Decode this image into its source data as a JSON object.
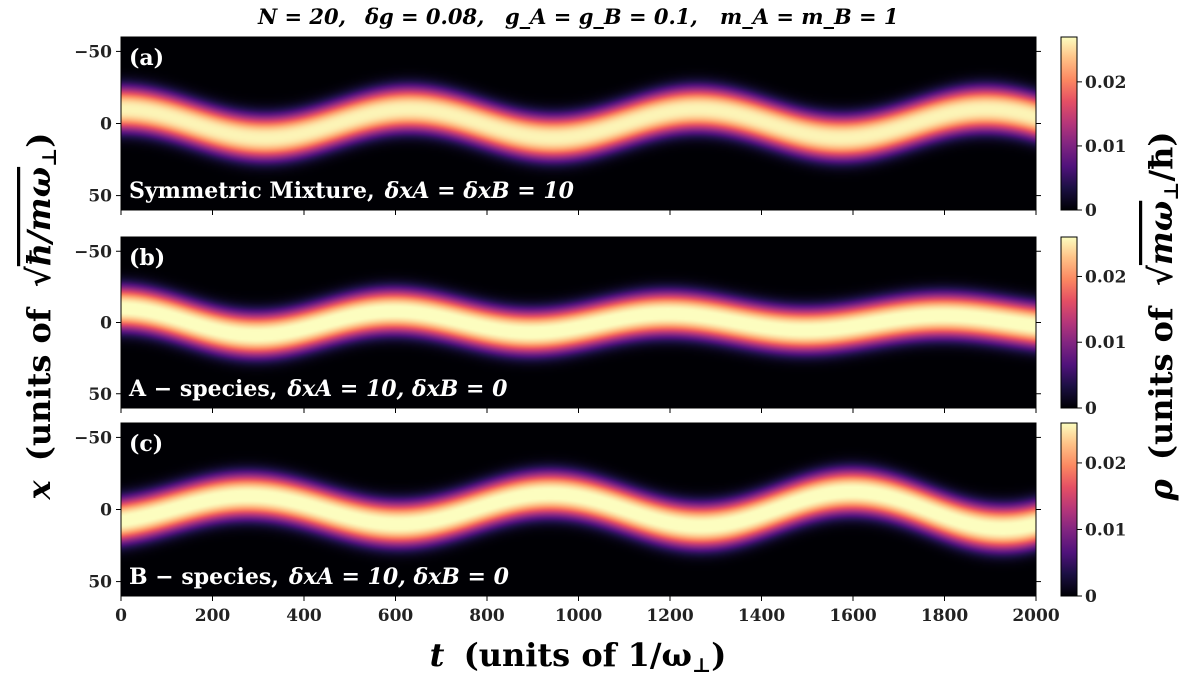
{
  "header": {
    "params": [
      "N = 20,",
      "δg = 0.08,",
      "g_A = g_B = 0.1,",
      "m_A = m_B = 1"
    ]
  },
  "axes": {
    "ylabel_var": "x",
    "ylabel_text": "(units of",
    "ylabel_sqrt": "ħ/mω",
    "ylabel_sub": "⊥",
    "ylabel_close": ")",
    "xlabel_var": "t",
    "xlabel_text": "(units of 1/ω",
    "xlabel_sub": "⊥",
    "xlabel_close": ")",
    "cbar_var": "ρ",
    "cbar_text": "(units of",
    "cbar_sqrt": "mω",
    "cbar_sub": "⊥",
    "cbar_sqrt_tail": "/ħ)"
  },
  "chart_data": [
    {
      "type": "heatmap",
      "panel": "(a)",
      "annotation": "Symmetric Mixture,  δx_A = δx_B = 10",
      "annot_plain": "Symmetric Mixture,",
      "annot_math": "δxA = δxB = 10",
      "x_range": [
        0,
        2000
      ],
      "y_range": [
        -60,
        60
      ],
      "y_inverted": true,
      "x_ticks": [
        0,
        200,
        400,
        600,
        800,
        1000,
        1200,
        1400,
        1600,
        1800,
        2000
      ],
      "y_ticks": [
        -50,
        0,
        50
      ],
      "colorbar": {
        "range": [
          0,
          0.027
        ],
        "ticks": [
          0,
          0.01,
          0.02
        ],
        "tick_labels": [
          "0",
          "0.01",
          "0.02"
        ],
        "colormap": "magma"
      },
      "centroid": {
        "amplitude": 10,
        "period": 630,
        "phase_deg": 90,
        "decay": 0.0
      },
      "width_sigma": 11
    },
    {
      "type": "heatmap",
      "panel": "(b)",
      "annotation": "A − species,  δx_A = 10,  δx_B = 0",
      "annot_plain": "A − species,",
      "annot_math": "δxA = 10,  δxB = 0",
      "x_range": [
        0,
        2000
      ],
      "y_range": [
        -60,
        60
      ],
      "y_inverted": true,
      "x_ticks": [
        0,
        200,
        400,
        600,
        800,
        1000,
        1200,
        1400,
        1600,
        1800,
        2000
      ],
      "y_ticks": [
        -50,
        0,
        50
      ],
      "colorbar": {
        "range": [
          0,
          0.026
        ],
        "ticks": [
          0,
          0.01,
          0.02
        ],
        "tick_labels": [
          "0",
          "0.01",
          "0.02"
        ],
        "colormap": "magma"
      },
      "centroid": {
        "amplitude": 10,
        "period": 600,
        "phase_deg": 90,
        "decay": 0.0004
      },
      "width_sigma": 11
    },
    {
      "type": "heatmap",
      "panel": "(c)",
      "annotation": "B − species,  δx_A = 10,  δx_B = 0",
      "annot_plain": "B − species,",
      "annot_math": "δxA = 10,  δxB = 0",
      "x_range": [
        0,
        2000
      ],
      "y_range": [
        -60,
        60
      ],
      "y_inverted": true,
      "x_ticks": [
        0,
        200,
        400,
        600,
        800,
        1000,
        1200,
        1400,
        1600,
        1800,
        2000
      ],
      "y_ticks": [
        -50,
        0,
        50
      ],
      "colorbar": {
        "range": [
          0,
          0.026
        ],
        "ticks": [
          0,
          0.01,
          0.02
        ],
        "tick_labels": [
          "0",
          "0.01",
          "0.02"
        ],
        "colormap": "magma"
      },
      "centroid": {
        "amplitude": 9,
        "period": 660,
        "phase_deg": -60,
        "decay": -0.0002
      },
      "width_sigma": 11
    }
  ]
}
